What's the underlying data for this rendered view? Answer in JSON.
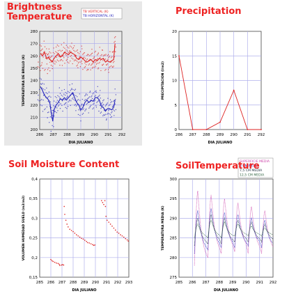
{
  "colors": {
    "title_red": "#ee2222",
    "grid": "#b0b0ec",
    "red_series": "#dd2222",
    "blue_series": "#2222bb",
    "magenta_series": "#cc44aa",
    "dark_series": "#223344",
    "green_series": "#336644",
    "panel_bg": "#e8e8e8"
  },
  "chart_data": [
    {
      "id": "tb",
      "type": "scatter",
      "title_line1": "Brightness",
      "title_line2": "Temperature",
      "xlabel": "DIA JULIANO",
      "ylabel": "TEMPERATURA DE BRILLO (K)",
      "xlim": [
        286,
        292
      ],
      "ylim": [
        200,
        280
      ],
      "xticks": [
        "286",
        "287",
        "288",
        "289",
        "290",
        "291",
        "292"
      ],
      "yticks": [
        "200",
        "210",
        "220",
        "230",
        "240",
        "250",
        "260",
        "270",
        "280"
      ],
      "legend": [
        "TB VERTICAL (K)",
        "TB HORIZONTAL (K)"
      ],
      "series": [
        {
          "name": "TB VERTICAL (K)",
          "points": [
            [
              286.05,
              262
            ],
            [
              286.2,
              260
            ],
            [
              286.35,
              263
            ],
            [
              286.5,
              258
            ],
            [
              286.65,
              259
            ],
            [
              286.75,
              257
            ],
            [
              286.9,
              255
            ],
            [
              287.05,
              258
            ],
            [
              287.2,
              260
            ],
            [
              287.35,
              262
            ],
            [
              287.5,
              259
            ],
            [
              287.65,
              260
            ],
            [
              287.8,
              263
            ],
            [
              287.95,
              262
            ],
            [
              288.1,
              261
            ],
            [
              288.25,
              263
            ],
            [
              288.4,
              262
            ],
            [
              288.55,
              261
            ],
            [
              288.7,
              258
            ],
            [
              288.85,
              257
            ],
            [
              289.0,
              259
            ],
            [
              289.15,
              258
            ],
            [
              289.3,
              256
            ],
            [
              289.45,
              255
            ],
            [
              289.6,
              256
            ],
            [
              289.75,
              257
            ],
            [
              289.9,
              255
            ],
            [
              290.05,
              257
            ],
            [
              290.2,
              256
            ],
            [
              290.35,
              258
            ],
            [
              290.5,
              257
            ],
            [
              290.65,
              258
            ],
            [
              290.8,
              255
            ],
            [
              290.95,
              256
            ],
            [
              291.1,
              255
            ],
            [
              291.25,
              256
            ],
            [
              291.4,
              257
            ],
            [
              291.5,
              270
            ]
          ]
        },
        {
          "name": "TB HORIZONTAL (K)",
          "points": [
            [
              286.05,
              235
            ],
            [
              286.2,
              232
            ],
            [
              286.35,
              228
            ],
            [
              286.5,
              226
            ],
            [
              286.65,
              224
            ],
            [
              286.75,
              221
            ],
            [
              286.85,
              213
            ],
            [
              286.95,
              207
            ],
            [
              287.05,
              216
            ],
            [
              287.2,
              220
            ],
            [
              287.35,
              222
            ],
            [
              287.5,
              225
            ],
            [
              287.65,
              224
            ],
            [
              287.8,
              226
            ],
            [
              287.95,
              224
            ],
            [
              288.1,
              226
            ],
            [
              288.25,
              228
            ],
            [
              288.4,
              230
            ],
            [
              288.55,
              226
            ],
            [
              288.7,
              222
            ],
            [
              288.85,
              220
            ],
            [
              289.0,
              216
            ],
            [
              289.15,
              218
            ],
            [
              289.3,
              222
            ],
            [
              289.45,
              224
            ],
            [
              289.6,
              222
            ],
            [
              289.75,
              224
            ],
            [
              289.9,
              223
            ],
            [
              290.05,
              226
            ],
            [
              290.2,
              226
            ],
            [
              290.35,
              224
            ],
            [
              290.5,
              219
            ],
            [
              290.65,
              218
            ],
            [
              290.8,
              215
            ],
            [
              290.95,
              217
            ],
            [
              291.1,
              217
            ],
            [
              291.25,
              216
            ],
            [
              291.4,
              218
            ],
            [
              291.5,
              224
            ]
          ]
        }
      ]
    },
    {
      "id": "precip",
      "type": "line",
      "title": "Precipitation",
      "xlabel": "DIA JULIANO",
      "ylabel": "PRECIPITACION (l/m2)",
      "xlim": [
        286,
        292
      ],
      "ylim": [
        0,
        20
      ],
      "xticks": [
        "286",
        "287",
        "288",
        "289",
        "290",
        "291",
        "292"
      ],
      "yticks": [
        "0",
        "5",
        "10",
        "15",
        "20"
      ],
      "series": [
        {
          "points": [
            [
              286,
              15
            ],
            [
              287,
              0
            ],
            [
              288,
              0
            ],
            [
              289,
              1.5
            ],
            [
              290,
              8
            ],
            [
              291,
              0
            ],
            [
              292,
              0
            ]
          ]
        }
      ]
    },
    {
      "id": "soil_moisture",
      "type": "scatter",
      "title": "Soil Moisture Content",
      "xlabel": "DIA JULIANO",
      "ylabel": "VOLUMEN HUMEDAD SUELO (m3/m3)",
      "xlim": [
        285,
        293
      ],
      "ylim": [
        0.15,
        0.4
      ],
      "xticks": [
        "285",
        "286",
        "287",
        "288",
        "289",
        "290",
        "291",
        "292",
        "293"
      ],
      "yticks": [
        "0,15",
        "0,2",
        "0,25",
        "0,3",
        "0,35",
        "0,4"
      ],
      "series": [
        {
          "points": [
            [
              286.0,
              0.195
            ],
            [
              286.1,
              0.192
            ],
            [
              286.2,
              0.19
            ],
            [
              286.35,
              0.188
            ],
            [
              286.5,
              0.186
            ],
            [
              286.65,
              0.185
            ],
            [
              286.75,
              0.183
            ],
            [
              286.8,
              0.18
            ],
            [
              286.95,
              0.181
            ],
            [
              287.05,
              0.182
            ],
            [
              287.15,
              0.181
            ],
            [
              287.2,
              0.33
            ],
            [
              287.25,
              0.31
            ],
            [
              287.35,
              0.295
            ],
            [
              287.45,
              0.285
            ],
            [
              287.55,
              0.278
            ],
            [
              287.7,
              0.272
            ],
            [
              287.85,
              0.269
            ],
            [
              288.0,
              0.266
            ],
            [
              288.15,
              0.262
            ],
            [
              288.3,
              0.258
            ],
            [
              288.45,
              0.255
            ],
            [
              288.6,
              0.252
            ],
            [
              288.75,
              0.249
            ],
            [
              288.9,
              0.247
            ],
            [
              289.05,
              0.244
            ],
            [
              289.2,
              0.241
            ],
            [
              289.3,
              0.238
            ],
            [
              289.45,
              0.237
            ],
            [
              289.6,
              0.235
            ],
            [
              289.75,
              0.233
            ],
            [
              289.85,
              0.231
            ],
            [
              289.95,
              0.232
            ],
            [
              290.55,
              0.345
            ],
            [
              290.65,
              0.34
            ],
            [
              290.75,
              0.335
            ],
            [
              290.85,
              0.345
            ],
            [
              290.9,
              0.33
            ],
            [
              290.95,
              0.305
            ],
            [
              291.05,
              0.295
            ],
            [
              291.2,
              0.29
            ],
            [
              291.35,
              0.285
            ],
            [
              291.5,
              0.28
            ],
            [
              291.65,
              0.275
            ],
            [
              291.8,
              0.27
            ],
            [
              291.95,
              0.265
            ],
            [
              292.1,
              0.262
            ],
            [
              292.25,
              0.258
            ],
            [
              292.4,
              0.255
            ],
            [
              292.55,
              0.252
            ],
            [
              292.7,
              0.248
            ],
            [
              292.85,
              0.245
            ],
            [
              292.95,
              0.242
            ]
          ]
        }
      ]
    },
    {
      "id": "soil_temp",
      "type": "line",
      "title": "SoilTemperature",
      "xlabel": "DIA JULIANO",
      "ylabel": "TEMPERATURA MEDIA (K)",
      "xlim": [
        285,
        292
      ],
      "ylim": [
        275,
        300
      ],
      "xticks": [
        "285",
        "286",
        "287",
        "288",
        "289",
        "290",
        "291",
        "292"
      ],
      "yticks": [
        "275",
        "280",
        "285",
        "290",
        "295",
        "300"
      ],
      "legend": [
        "SUPERFICIE MEDIA",
        "5 CM MEDIA",
        "7,5 CM MEDIA",
        "12,5 CM MEDIA"
      ],
      "series": [
        {
          "name": "SUPERFICIE MEDIA",
          "peaks": [
            297,
            296,
            295,
            294,
            293,
            292
          ],
          "troughs": [
            278,
            280,
            281,
            281.5,
            281,
            281
          ]
        },
        {
          "name": "5 CM MEDIA",
          "peaks": [
            292,
            292.5,
            291.5,
            291,
            290,
            289.5
          ],
          "troughs": [
            281,
            282,
            282.5,
            282.5,
            283,
            282.5
          ]
        },
        {
          "name": "7,5 CM MEDIA",
          "peaks": [
            290,
            291,
            290,
            289.5,
            289,
            288.5
          ],
          "troughs": [
            283,
            283.5,
            283.5,
            284,
            284,
            284
          ]
        },
        {
          "name": "12,5 CM MEDIA",
          "peaks": [
            288.5,
            289.5,
            289,
            288.5,
            288,
            287.5
          ],
          "troughs": [
            285,
            285,
            285,
            285.5,
            285.5,
            285.5
          ]
        }
      ]
    }
  ]
}
